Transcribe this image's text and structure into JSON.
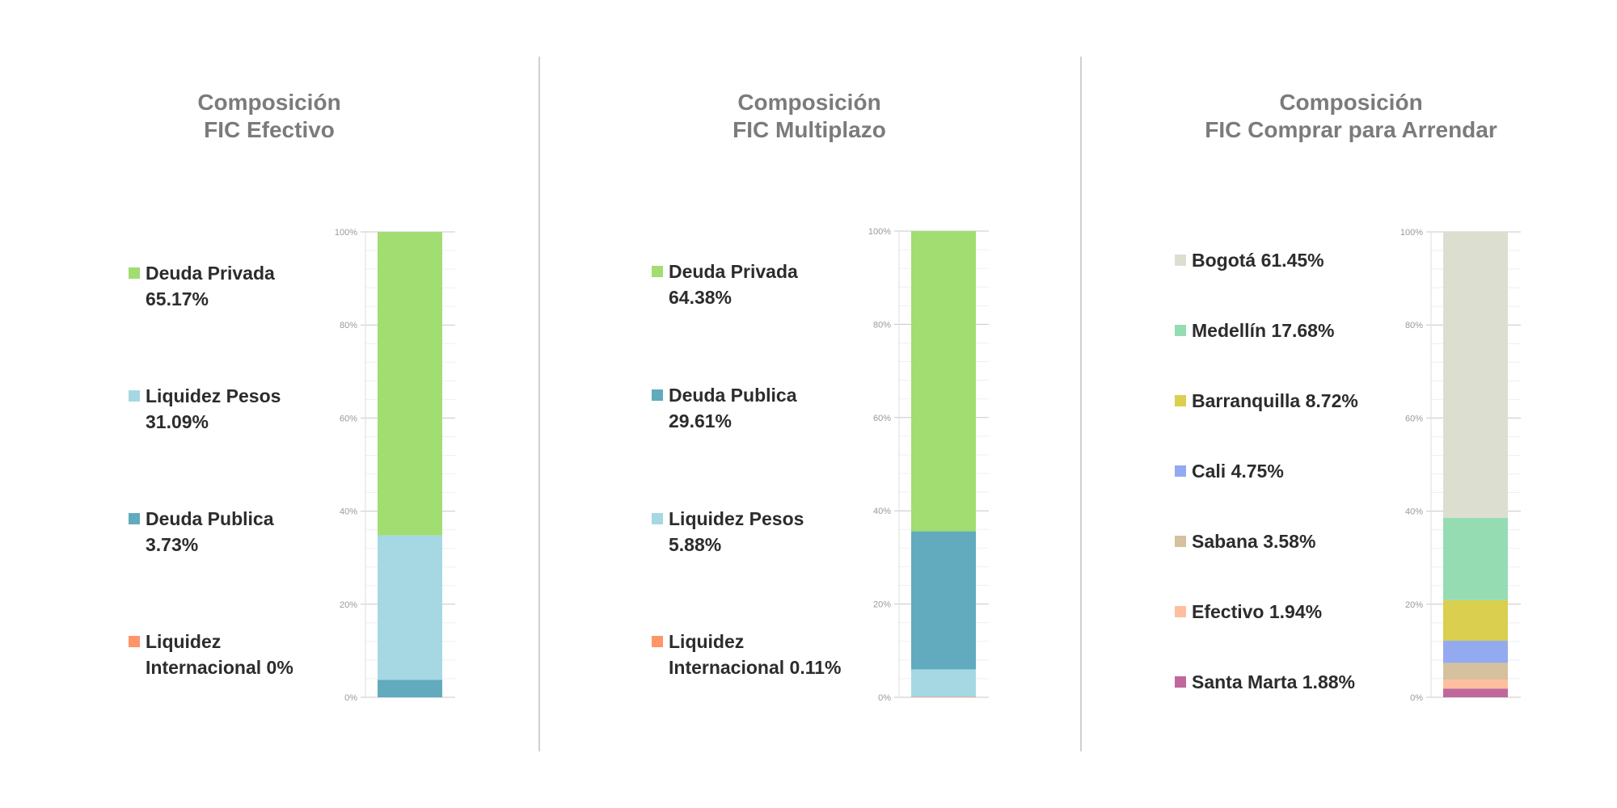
{
  "chart_data": [
    {
      "type": "bar",
      "stacked": true,
      "title_lines": [
        "Composición",
        "FIC Efectivo"
      ],
      "yticks": [
        "0%",
        "20%",
        "40%",
        "60%",
        "80%",
        "100%"
      ],
      "ylim": [
        0,
        100
      ],
      "grid": true,
      "legend_placement": "left",
      "series": [
        {
          "name": "Deuda Privada",
          "value_label": "65.17%",
          "value": 65.17,
          "color": "#a1dd70"
        },
        {
          "name": "Liquidez Pesos",
          "value_label": "31.09%",
          "value": 31.09,
          "color": "#a6d8e3"
        },
        {
          "name": "Deuda Publica",
          "value_label": "3.73%",
          "value": 3.73,
          "color": "#62aabd"
        },
        {
          "name": "Liquidez Internacional",
          "name_lines": [
            "Liquidez",
            "Internacional 0%"
          ],
          "value_label": "0%",
          "value": 0,
          "color": "#fe9667"
        }
      ]
    },
    {
      "type": "bar",
      "stacked": true,
      "title_lines": [
        "Composición",
        "FIC Multiplazo"
      ],
      "yticks": [
        "0%",
        "20%",
        "40%",
        "60%",
        "80%",
        "100%"
      ],
      "ylim": [
        0,
        100
      ],
      "grid": true,
      "legend_placement": "left",
      "series": [
        {
          "name": "Deuda Privada",
          "value_label": "64.38%",
          "value": 64.38,
          "color": "#a1dd70"
        },
        {
          "name": "Deuda Publica",
          "value_label": "29.61%",
          "value": 29.61,
          "color": "#62aabd"
        },
        {
          "name": "Liquidez Pesos",
          "value_label": "5.88%",
          "value": 5.88,
          "color": "#a6d8e3"
        },
        {
          "name": "Liquidez Internacional",
          "name_lines": [
            "Liquidez",
            "Internacional 0.11%"
          ],
          "value_label": "0.11%",
          "value": 0.11,
          "color": "#fe9667"
        }
      ]
    },
    {
      "type": "bar",
      "stacked": true,
      "title_lines": [
        "Composición",
        "FIC Comprar para Arrendar"
      ],
      "yticks": [
        "0%",
        "20%",
        "40%",
        "60%",
        "80%",
        "100%"
      ],
      "ylim": [
        0,
        100
      ],
      "grid": true,
      "legend_placement": "left",
      "series": [
        {
          "name": "Bogotá",
          "label": "Bogotá 61.45%",
          "value": 61.45,
          "color": "#dcdfd0"
        },
        {
          "name": "Medellín",
          "label": "Medellín 17.68%",
          "value": 17.68,
          "color": "#96dcb3"
        },
        {
          "name": "Barranquilla",
          "label": "Barranquilla 8.72%",
          "value": 8.72,
          "color": "#dacf4e"
        },
        {
          "name": "Cali",
          "label": "Cali 4.75%",
          "value": 4.75,
          "color": "#94aaf0"
        },
        {
          "name": "Sabana",
          "label": "Sabana 3.58%",
          "value": 3.58,
          "color": "#d5c19e"
        },
        {
          "name": "Efectivo",
          "label": "Efectivo 1.94%",
          "value": 1.94,
          "color": "#fdbfa0"
        },
        {
          "name": "Santa Marta",
          "label": "Santa Marta 1.88%",
          "value": 1.88,
          "color": "#c0689b"
        }
      ]
    }
  ]
}
